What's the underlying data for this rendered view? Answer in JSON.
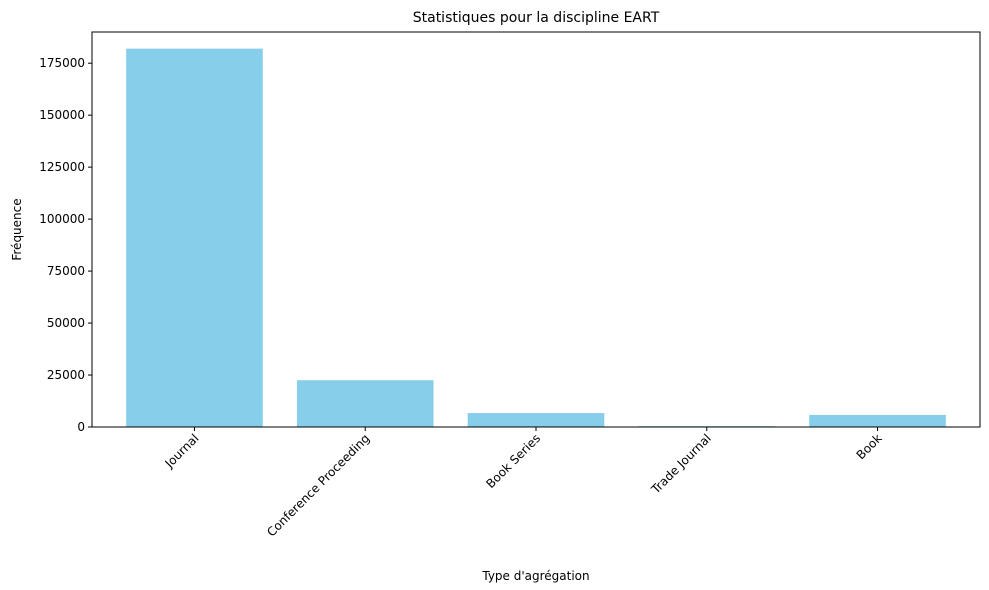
{
  "chart_data": {
    "type": "bar",
    "title": "Statistiques pour la discipline EART",
    "xlabel": "Type d'agrégation",
    "ylabel": "Fréquence",
    "categories": [
      "Journal",
      "Conference Proceeding",
      "Book Series",
      "Trade Journal",
      "Book"
    ],
    "values": [
      182000,
      22500,
      6700,
      400,
      5800
    ],
    "ylim": [
      0,
      190000
    ],
    "yticks": [
      0,
      25000,
      50000,
      75000,
      100000,
      125000,
      150000,
      175000
    ],
    "bar_color": "#87ceeb",
    "grid": false,
    "xtick_rotation": 45
  }
}
